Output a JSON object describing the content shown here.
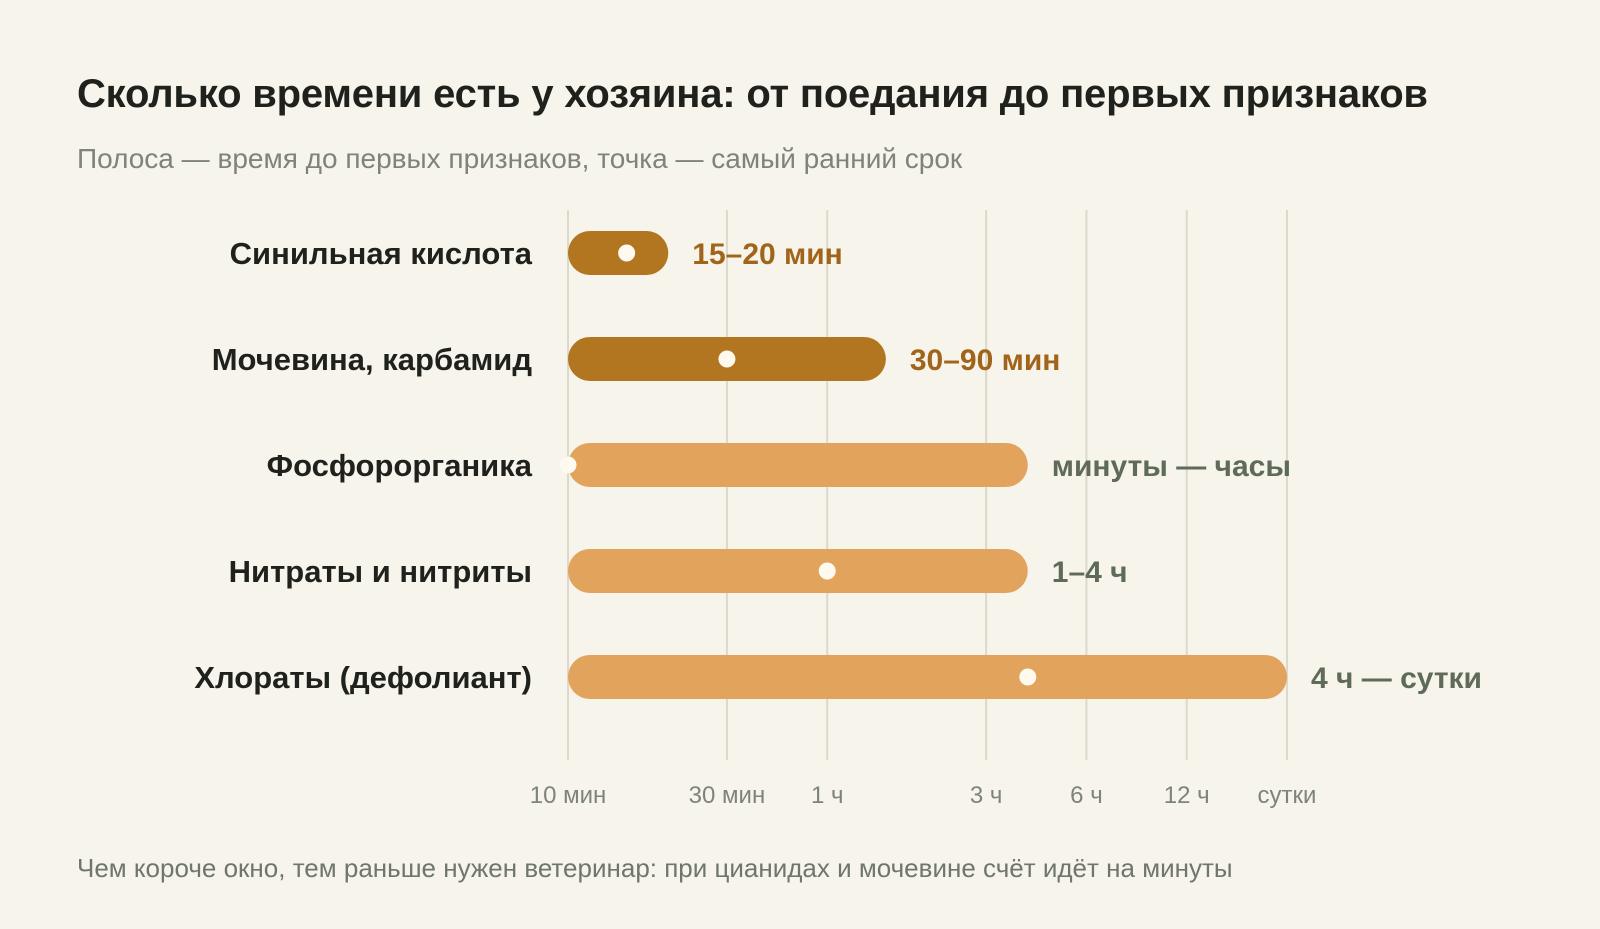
{
  "title": "Сколько времени есть у хозяина: от поедания до первых признаков",
  "subtitle": "Полоса — время до первых признаков, точка — самый ранний срок",
  "footnote": "Чем короче окно, тем раньше нужен ветеринар: при цианидах и мочевине счёт идёт на минуты",
  "colors": {
    "dark": "#b37620",
    "light": "#e2a45c",
    "dot": "#fffaf0",
    "grid": "#dcd8cc",
    "label_dark": "#a0651a",
    "label_muted": "#5e6a5a",
    "background": "#f7f4ec"
  },
  "chart_data": {
    "type": "bar",
    "orientation": "horizontal",
    "x_scale": "log",
    "x_unit": "minutes",
    "x_ticks": [
      {
        "value": 10,
        "label": "10 мин"
      },
      {
        "value": 30,
        "label": "30 мин"
      },
      {
        "value": 60,
        "label": "1 ч"
      },
      {
        "value": 180,
        "label": "3 ч"
      },
      {
        "value": 360,
        "label": "6 ч"
      },
      {
        "value": 720,
        "label": "12 ч"
      },
      {
        "value": 1440,
        "label": "сутки"
      }
    ],
    "grid": true,
    "series": [
      {
        "category": "Синильная кислота",
        "start": 10,
        "end": 20,
        "earliest": 15,
        "value_label": "15–20 мин",
        "tone": "dark"
      },
      {
        "category": "Мочевина, карбамид",
        "start": 10,
        "end": 90,
        "earliest": 30,
        "value_label": "30–90 мин",
        "tone": "dark"
      },
      {
        "category": "Фосфорорганика",
        "start": 10,
        "end": 240,
        "earliest": 10,
        "value_label": "минуты — часы",
        "tone": "light"
      },
      {
        "category": "Нитраты и нитриты",
        "start": 10,
        "end": 240,
        "earliest": 60,
        "value_label": "1–4 ч",
        "tone": "light"
      },
      {
        "category": "Хлораты (дефолиант)",
        "start": 10,
        "end": 1440,
        "earliest": 240,
        "value_label": "4 ч — сутки",
        "tone": "light"
      }
    ]
  }
}
